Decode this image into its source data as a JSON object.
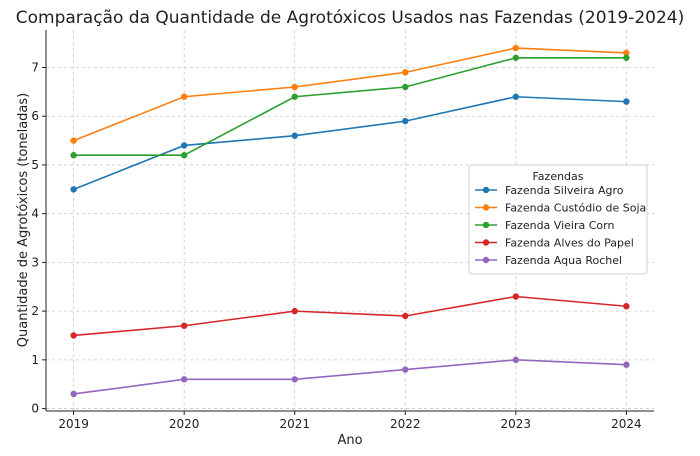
{
  "chart_data": {
    "type": "line",
    "title": "Comparação da Quantidade de Agrotóxicos Usados nas Fazendas (2019-2024)",
    "xlabel": "Ano",
    "ylabel": "Quantidade de Agrotóxicos (toneladas)",
    "x": [
      2019,
      2020,
      2021,
      2022,
      2023,
      2024
    ],
    "x_tick_labels": [
      "2019",
      "2020",
      "2021",
      "2022",
      "2023",
      "2024"
    ],
    "y_ticks": [
      0,
      1,
      2,
      3,
      4,
      5,
      6,
      7
    ],
    "y_tick_labels": [
      "0",
      "1",
      "2",
      "3",
      "4",
      "5",
      "6",
      "7"
    ],
    "xlim": [
      2018.75,
      2024.25
    ],
    "ylim": [
      -0.05,
      7.77
    ],
    "grid": true,
    "legend": {
      "title": "Fazendas",
      "placement": "center-right"
    },
    "series": [
      {
        "name": "Fazenda Silveira Agro",
        "color": "#1f77b4",
        "values": [
          4.5,
          5.4,
          5.6,
          5.9,
          6.4,
          6.3
        ]
      },
      {
        "name": "Fazenda Custódio de Soja",
        "color": "#ff7f0e",
        "values": [
          5.5,
          6.4,
          6.6,
          6.9,
          7.4,
          7.3
        ]
      },
      {
        "name": "Fazenda Vieira Corn",
        "color": "#2ca02c",
        "values": [
          5.2,
          5.2,
          6.4,
          6.6,
          7.2,
          7.2
        ]
      },
      {
        "name": "Fazenda Alves do Papel",
        "color": "#d62728",
        "values": [
          1.5,
          1.7,
          2.0,
          1.9,
          2.3,
          2.1
        ]
      },
      {
        "name": "Fazenda Aqua Rochel",
        "color": "#9467bd",
        "values": [
          0.3,
          0.6,
          0.6,
          0.8,
          1.0,
          0.9
        ]
      }
    ]
  }
}
